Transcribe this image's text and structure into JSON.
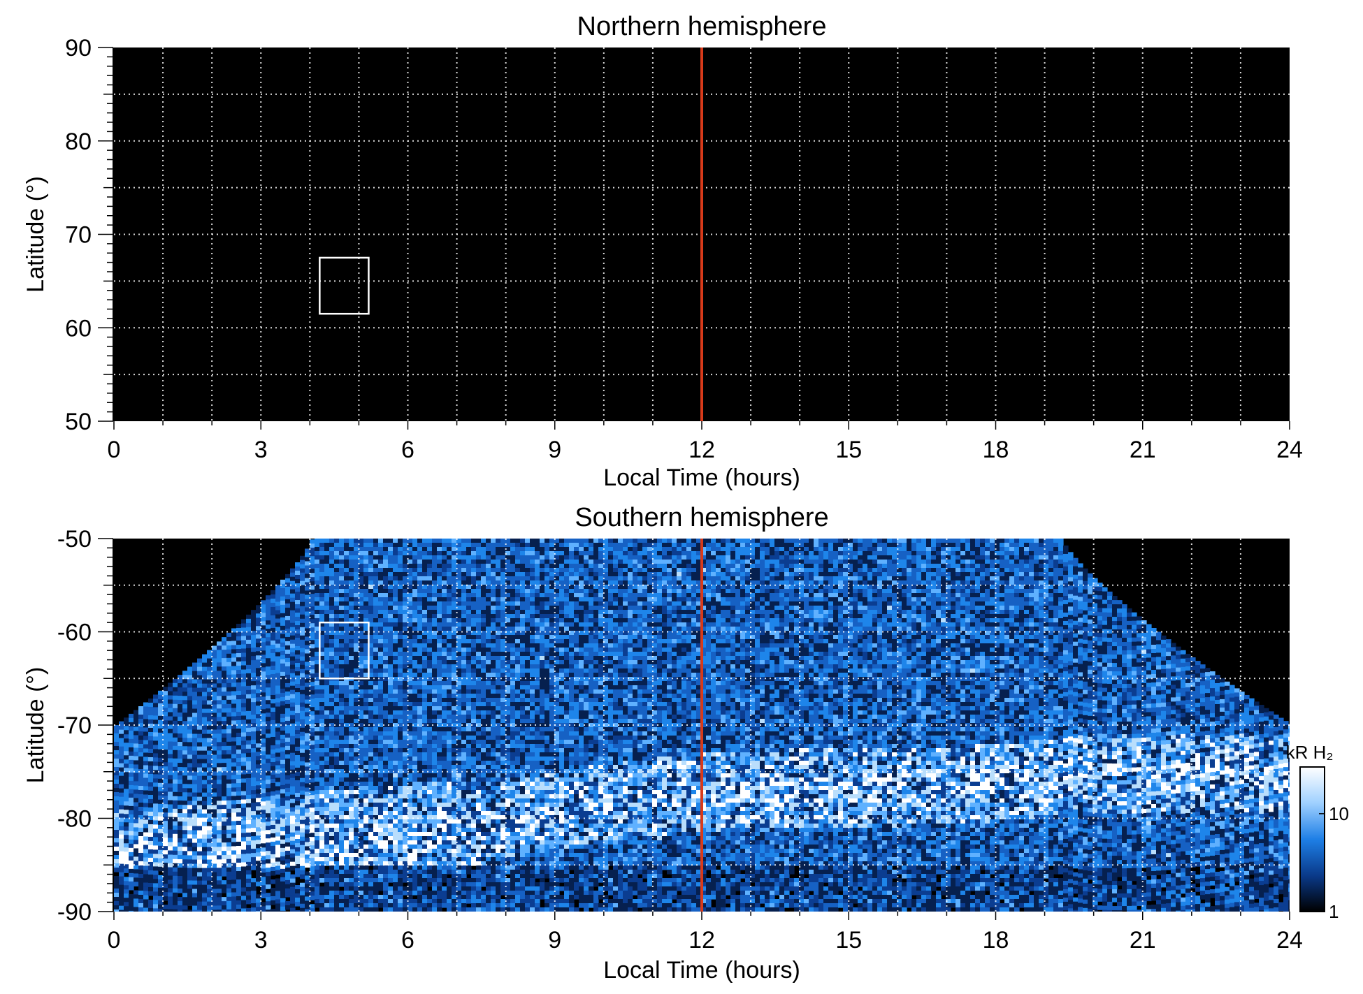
{
  "chart_data": [
    {
      "type": "heatmap",
      "title": "Northern hemisphere",
      "xlabel": "Local Time (hours)",
      "ylabel": "Latitude (°)",
      "xlim": [
        0,
        24
      ],
      "ylim": [
        50,
        90
      ],
      "x_ticks": [
        "0",
        "3",
        "6",
        "9",
        "12",
        "15",
        "18",
        "21",
        "24"
      ],
      "y_ticks": [
        "50",
        "60",
        "70",
        "80",
        "90"
      ],
      "grid": "dotted",
      "background": "#000000",
      "coverage": "none",
      "marker_line": {
        "local_time": 12,
        "color": "#d83a1a"
      },
      "box": {
        "x_range": [
          4.2,
          5.2
        ],
        "lat_range": [
          61.5,
          67.5
        ],
        "color": "#ffffff"
      }
    },
    {
      "type": "heatmap",
      "title": "Southern hemisphere",
      "xlabel": "Local Time (hours)",
      "ylabel": "Latitude (°)",
      "xlim": [
        0,
        24
      ],
      "ylim": [
        -90,
        -50
      ],
      "x_ticks": [
        "0",
        "3",
        "6",
        "9",
        "12",
        "15",
        "18",
        "21",
        "24"
      ],
      "y_ticks": [
        "-90",
        "-80",
        "-70",
        "-60",
        "-50"
      ],
      "grid": "dotted",
      "background": "#000000",
      "marker_line": {
        "local_time": 12,
        "color": "#d83a1a"
      },
      "box": {
        "x_range": [
          4.2,
          5.2
        ],
        "lat_range": [
          -65,
          -59
        ],
        "color": "#ffffff"
      },
      "auroral_oval": {
        "local_time": [
          0,
          2,
          4,
          6,
          8,
          10,
          12,
          14,
          16,
          18,
          20
        ],
        "latitude": [
          -85,
          -84,
          -83,
          -82,
          -80,
          -78,
          -77,
          -76.5,
          -76.5,
          -76,
          -75
        ]
      },
      "colorbar": {
        "unit": "kR H₂",
        "scale": "log",
        "range": [
          1,
          30
        ],
        "ticks": [
          "1",
          "10"
        ],
        "colors": [
          "#000000",
          "#0a3a8a",
          "#1e7fe6",
          "#9fd0ff",
          "#ffffff"
        ]
      }
    }
  ]
}
